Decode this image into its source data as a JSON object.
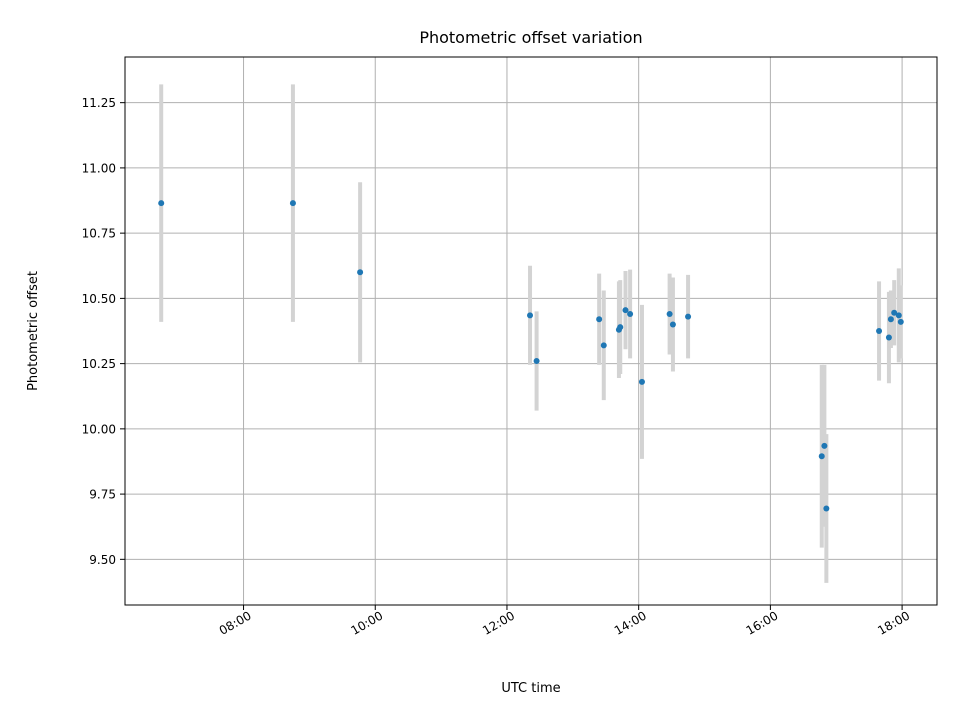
{
  "chart_data": {
    "type": "scatter",
    "title": "Photometric offset variation",
    "xlabel": "UTC time",
    "ylabel": "Photometric offset",
    "x_unit": "time of day (UTC, hours)",
    "xlim": [
      6.2,
      18.53
    ],
    "ylim": [
      9.325,
      11.425
    ],
    "x_ticks": [
      {
        "value": 8,
        "label": "08:00"
      },
      {
        "value": 10,
        "label": "10:00"
      },
      {
        "value": 12,
        "label": "12:00"
      },
      {
        "value": 14,
        "label": "14:00"
      },
      {
        "value": 16,
        "label": "16:00"
      },
      {
        "value": 18,
        "label": "18:00"
      }
    ],
    "y_ticks": [
      {
        "value": 9.5,
        "label": "9.50"
      },
      {
        "value": 9.75,
        "label": "9.75"
      },
      {
        "value": 10.0,
        "label": "10.00"
      },
      {
        "value": 10.25,
        "label": "10.25"
      },
      {
        "value": 10.5,
        "label": "10.50"
      },
      {
        "value": 10.75,
        "label": "10.75"
      },
      {
        "value": 11.0,
        "label": "11.00"
      },
      {
        "value": 11.25,
        "label": "11.25"
      }
    ],
    "grid": true,
    "marker_color": "#1f77b4",
    "errorbar_color": "#d3d3d3",
    "points": [
      {
        "x": 6.75,
        "y": 10.865,
        "err": 0.455
      },
      {
        "x": 8.75,
        "y": 10.865,
        "err": 0.455
      },
      {
        "x": 9.77,
        "y": 10.6,
        "err": 0.345
      },
      {
        "x": 12.35,
        "y": 10.435,
        "err": 0.19
      },
      {
        "x": 12.45,
        "y": 10.26,
        "err": 0.19
      },
      {
        "x": 13.4,
        "y": 10.42,
        "err": 0.175
      },
      {
        "x": 13.47,
        "y": 10.32,
        "err": 0.21
      },
      {
        "x": 13.7,
        "y": 10.38,
        "err": 0.185
      },
      {
        "x": 13.72,
        "y": 10.39,
        "err": 0.18
      },
      {
        "x": 13.8,
        "y": 10.455,
        "err": 0.15
      },
      {
        "x": 13.87,
        "y": 10.44,
        "err": 0.17
      },
      {
        "x": 14.05,
        "y": 10.18,
        "err": 0.295
      },
      {
        "x": 14.47,
        "y": 10.44,
        "err": 0.155
      },
      {
        "x": 14.52,
        "y": 10.4,
        "err": 0.18
      },
      {
        "x": 14.75,
        "y": 10.43,
        "err": 0.16
      },
      {
        "x": 16.78,
        "y": 9.895,
        "err": 0.35
      },
      {
        "x": 16.82,
        "y": 9.935,
        "err": 0.31
      },
      {
        "x": 16.85,
        "y": 9.695,
        "err": 0.285
      },
      {
        "x": 17.65,
        "y": 10.375,
        "err": 0.19
      },
      {
        "x": 17.8,
        "y": 10.35,
        "err": 0.175
      },
      {
        "x": 17.83,
        "y": 10.42,
        "err": 0.11
      },
      {
        "x": 17.88,
        "y": 10.445,
        "err": 0.125
      },
      {
        "x": 17.95,
        "y": 10.435,
        "err": 0.18
      },
      {
        "x": 17.98,
        "y": 10.41,
        "err": 0.14
      }
    ]
  }
}
